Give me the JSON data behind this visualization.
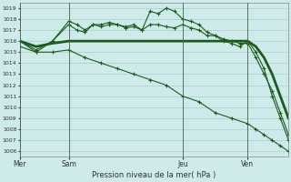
{
  "background_color": "#ceeaea",
  "grid_color": "#aacccc",
  "line_color": "#1a5c1a",
  "title": "Pression niveau de la mer( hPa )",
  "ylim": [
    1005.5,
    1019.5
  ],
  "yticks": [
    1006,
    1007,
    1008,
    1009,
    1010,
    1011,
    1012,
    1013,
    1014,
    1015,
    1016,
    1017,
    1018,
    1019
  ],
  "day_labels": [
    "Mer",
    "Sam",
    "Jeu",
    "Ven"
  ],
  "day_positions": [
    0,
    6,
    20,
    28
  ],
  "xlim": [
    0,
    33
  ],
  "series": [
    {
      "x": [
        0,
        2,
        4,
        6,
        8,
        10,
        12,
        14,
        16,
        18,
        20,
        22,
        24,
        26,
        28,
        29,
        30,
        31,
        32,
        33
      ],
      "y": [
        1016.0,
        1015.5,
        1015.8,
        1016.0,
        1016.0,
        1016.0,
        1016.0,
        1016.0,
        1016.0,
        1016.0,
        1016.0,
        1016.0,
        1016.0,
        1016.0,
        1016.0,
        1015.5,
        1014.5,
        1013.0,
        1011.0,
        1009.0
      ],
      "lw": 2.0,
      "marker": null
    },
    {
      "x": [
        0,
        2,
        4,
        6,
        7,
        8,
        9,
        10,
        11,
        12,
        13,
        14,
        15,
        16,
        17,
        18,
        19,
        20,
        21,
        22,
        23,
        24,
        25,
        26,
        27,
        28,
        29,
        30,
        31,
        32,
        33
      ],
      "y": [
        1016.0,
        1015.0,
        1016.0,
        1017.8,
        1017.5,
        1017.0,
        1017.5,
        1017.5,
        1017.7,
        1017.5,
        1017.3,
        1017.5,
        1017.0,
        1018.7,
        1018.5,
        1019.0,
        1018.7,
        1018.0,
        1017.8,
        1017.5,
        1016.8,
        1016.5,
        1016.0,
        1015.8,
        1015.5,
        1016.0,
        1015.0,
        1013.5,
        1011.0,
        1009.0,
        1007.0
      ],
      "lw": 0.8,
      "marker": "+"
    },
    {
      "x": [
        0,
        2,
        4,
        6,
        7,
        8,
        9,
        10,
        11,
        12,
        13,
        14,
        15,
        16,
        17,
        18,
        19,
        20,
        21,
        22,
        23,
        24,
        25,
        26,
        27,
        28,
        29,
        30,
        31,
        32,
        33
      ],
      "y": [
        1016.0,
        1015.2,
        1016.0,
        1017.5,
        1017.0,
        1016.8,
        1017.5,
        1017.3,
        1017.5,
        1017.5,
        1017.2,
        1017.3,
        1017.0,
        1017.5,
        1017.5,
        1017.3,
        1017.2,
        1017.5,
        1017.2,
        1017.0,
        1016.5,
        1016.5,
        1016.2,
        1016.0,
        1015.8,
        1015.8,
        1014.5,
        1013.0,
        1011.5,
        1009.5,
        1007.5
      ],
      "lw": 0.8,
      "marker": "+"
    },
    {
      "x": [
        0,
        2,
        4,
        6,
        8,
        10,
        12,
        14,
        16,
        18,
        20,
        22,
        24,
        26,
        28,
        29,
        30,
        31,
        32,
        33
      ],
      "y": [
        1015.5,
        1015.0,
        1015.0,
        1015.2,
        1014.5,
        1014.0,
        1013.5,
        1013.0,
        1012.5,
        1012.0,
        1011.0,
        1010.5,
        1009.5,
        1009.0,
        1008.5,
        1008.0,
        1007.5,
        1007.0,
        1006.5,
        1006.0
      ],
      "lw": 0.8,
      "marker": "+"
    }
  ]
}
